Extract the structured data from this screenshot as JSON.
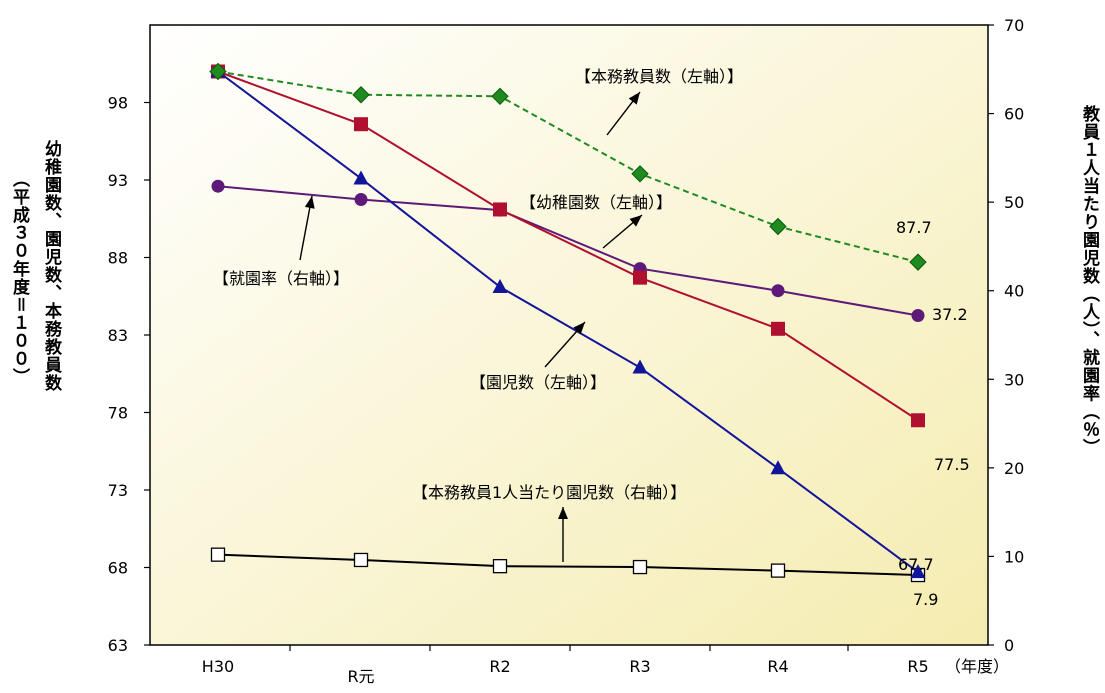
{
  "chart_data": {
    "type": "line",
    "categories": [
      "H30",
      "R元",
      "R2",
      "R3",
      "R4",
      "R5"
    ],
    "x_suffix": "（年度）",
    "left_axis": {
      "label_line1": "幼稚園数、園児数、本務教員数",
      "label_line2": "（平成３０年度＝１００）",
      "ylim": [
        63,
        103
      ],
      "ticks": [
        63,
        68,
        73,
        78,
        83,
        88,
        93,
        98
      ]
    },
    "right_axis": {
      "label": "教員１人当たり園児数（人）、就園率（％）",
      "ylim": [
        0,
        70
      ],
      "ticks": [
        0,
        10,
        20,
        30,
        40,
        50,
        60,
        70
      ]
    },
    "grid": false,
    "series": [
      {
        "name": "【本務教員数（左軸）】",
        "axis": "left",
        "color": "#1f8a1f",
        "marker": "diamond",
        "dashed": true,
        "values": [
          100,
          98.5,
          98.4,
          93.4,
          90.0,
          87.7
        ],
        "end_label": "87.7"
      },
      {
        "name": "【幼稚園数（左軸）】",
        "axis": "left",
        "color": "#b01030",
        "marker": "square",
        "dashed": false,
        "values": [
          100,
          96.6,
          91.1,
          86.7,
          83.4,
          77.5
        ],
        "end_label": "77.5"
      },
      {
        "name": "【就園率（右軸）】",
        "axis": "right",
        "color": "#5e1a78",
        "marker": "circle",
        "dashed": false,
        "values": [
          51.8,
          50.3,
          49.1,
          42.5,
          40.0,
          37.2
        ],
        "end_label": "37.2"
      },
      {
        "name": "【園児数（左軸）】",
        "axis": "left",
        "color": "#12149a",
        "marker": "triangle",
        "dashed": false,
        "values": [
          100,
          93.1,
          86.1,
          80.9,
          74.4,
          67.7
        ],
        "end_label": "67.7"
      },
      {
        "name": "【本務教員1人当たり園児数（右軸）】",
        "axis": "right",
        "color": "#000000",
        "marker": "open-square",
        "dashed": false,
        "values": [
          10.2,
          9.6,
          8.9,
          8.8,
          8.4,
          7.9
        ],
        "end_label": "7.9"
      }
    ]
  }
}
